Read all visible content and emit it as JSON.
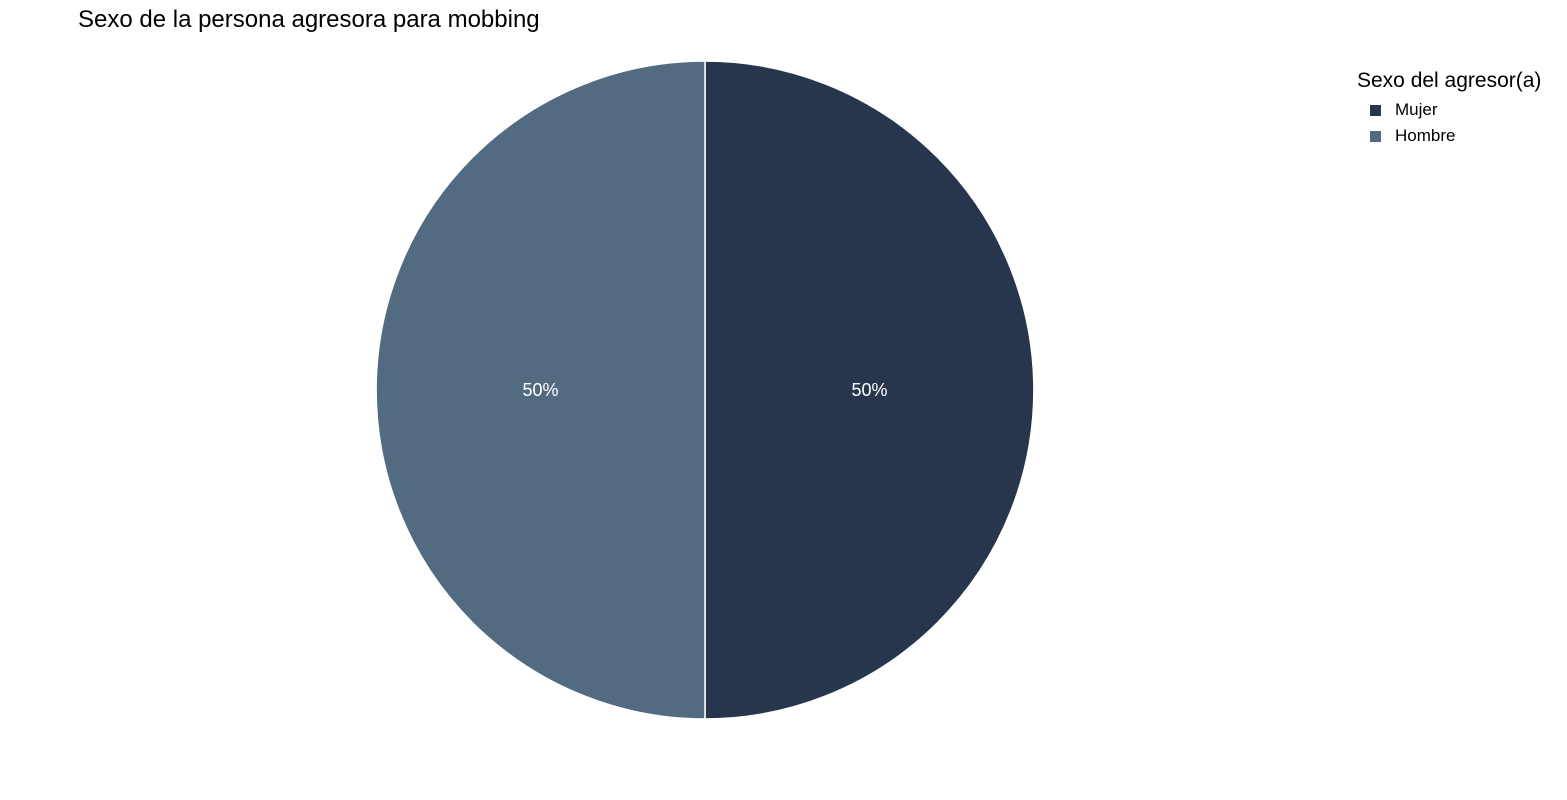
{
  "chart_data": {
    "type": "pie",
    "title": "Sexo de la persona agresora para mobbing",
    "legend": {
      "title": "Sexo del agresor(a)",
      "placement": "top-right"
    },
    "slices": [
      {
        "label": "Mujer",
        "value": 50,
        "display": "50%",
        "color": "#27364d"
      },
      {
        "label": "Hombre",
        "value": 50,
        "display": "50%",
        "color": "#536b80"
      }
    ]
  }
}
